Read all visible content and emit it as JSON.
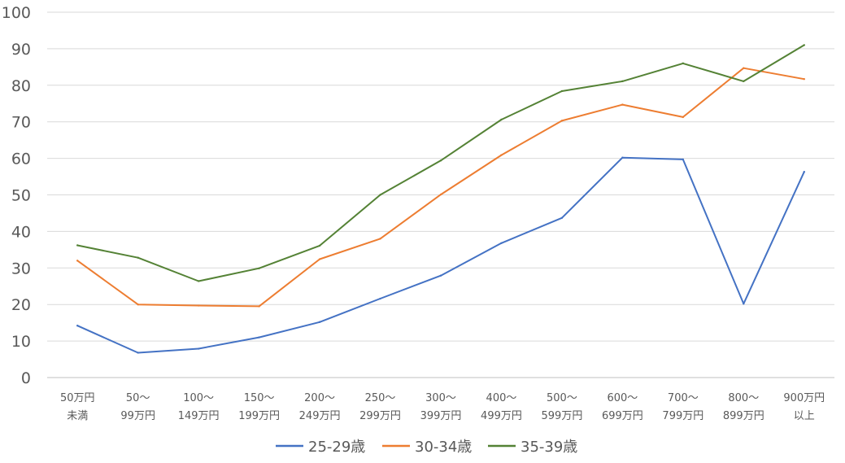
{
  "chart_data": {
    "type": "line",
    "title": "",
    "xlabel": "",
    "ylabel": "",
    "ylim": [
      0,
      100
    ],
    "yticks": [
      "0",
      "10",
      "20",
      "30",
      "40",
      "50",
      "60",
      "70",
      "80",
      "90",
      "100"
    ],
    "grid": "horizontal",
    "legend_position": "bottom",
    "categories": [
      [
        "50万円",
        "未満"
      ],
      [
        "50〜",
        "99万円"
      ],
      [
        "100〜",
        "149万円"
      ],
      [
        "150〜",
        "199万円"
      ],
      [
        "200〜",
        "249万円"
      ],
      [
        "250〜",
        "299万円"
      ],
      [
        "300〜",
        "399万円"
      ],
      [
        "400〜",
        "499万円"
      ],
      [
        "500〜",
        "599万円"
      ],
      [
        "600〜",
        "699万円"
      ],
      [
        "700〜",
        "799万円"
      ],
      [
        "800〜",
        "899万円"
      ],
      [
        "900万円",
        "以上"
      ]
    ],
    "series": [
      {
        "name": "25-29歳",
        "color": "#4472C4",
        "values": [
          14.2,
          6.8,
          7.9,
          11.0,
          15.2,
          21.6,
          27.9,
          36.8,
          43.7,
          60.2,
          59.7,
          20.2,
          56.3
        ]
      },
      {
        "name": "30-34歳",
        "color": "#ED7D31",
        "values": [
          32.0,
          20.0,
          19.7,
          19.5,
          32.4,
          38.0,
          50.1,
          60.9,
          70.3,
          74.7,
          71.3,
          84.7,
          81.7
        ]
      },
      {
        "name": "35-39歳",
        "color": "#548235",
        "values": [
          36.2,
          32.8,
          26.4,
          29.9,
          36.1,
          50.0,
          59.4,
          70.6,
          78.4,
          81.1,
          86.0,
          81.1,
          91.0
        ]
      }
    ]
  }
}
